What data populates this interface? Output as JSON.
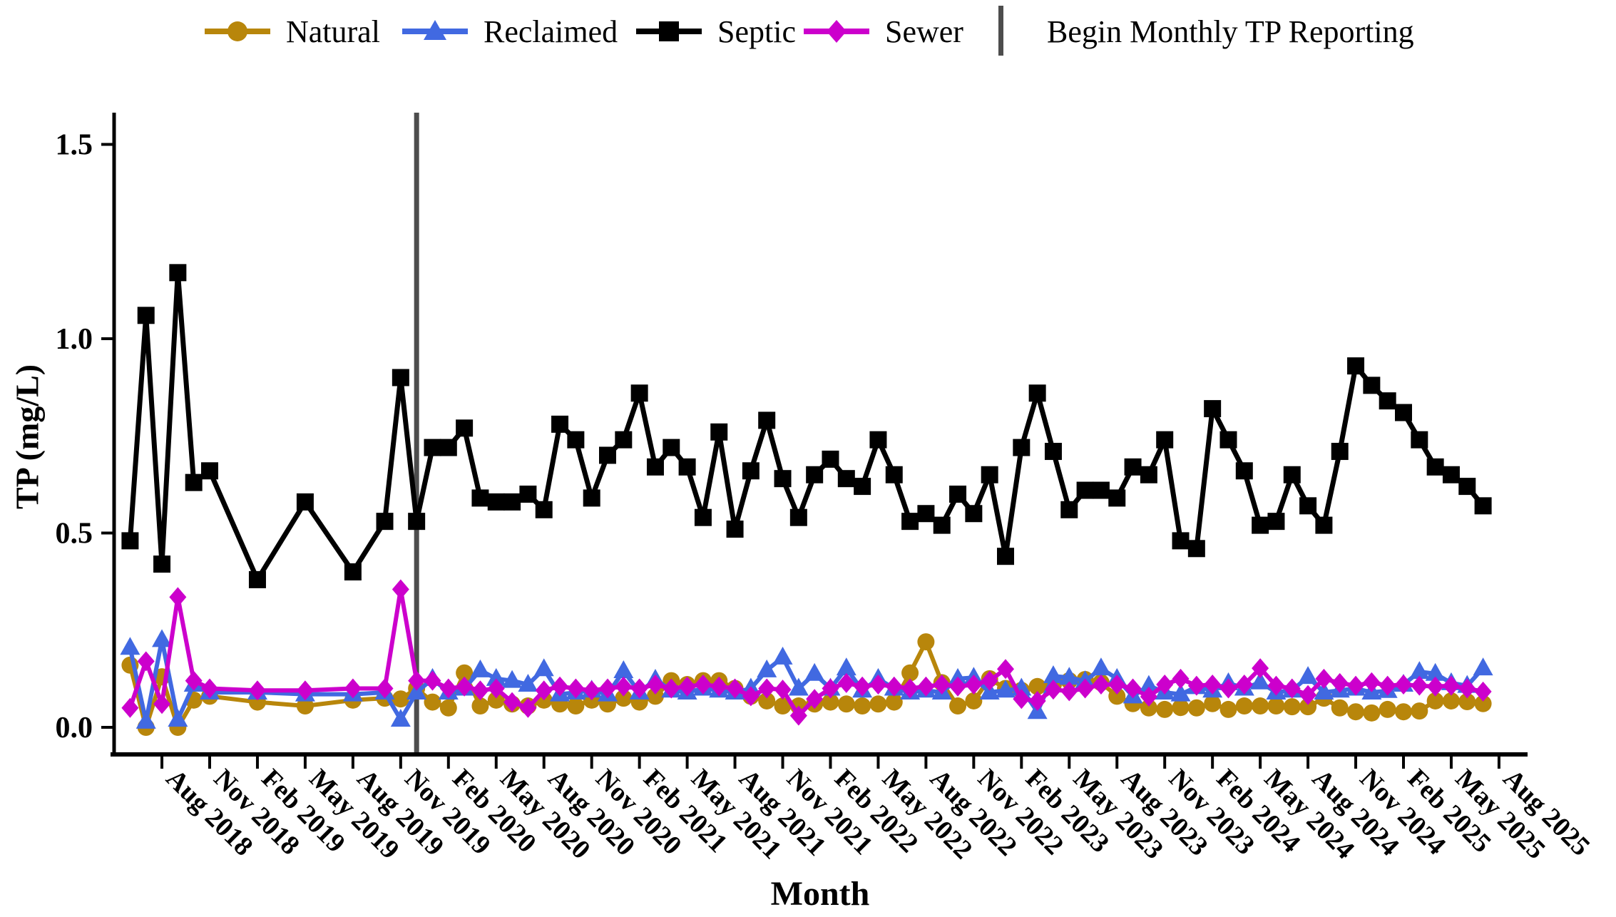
{
  "legend": {
    "items": [
      {
        "label": "Natural",
        "color": "#B8860B",
        "marker": "circle"
      },
      {
        "label": "Reclaimed",
        "color": "#4169E1",
        "marker": "triangle"
      },
      {
        "label": "Septic",
        "color": "#000000",
        "marker": "square"
      },
      {
        "label": "Sewer",
        "color": "#CC00CC",
        "marker": "diamond"
      }
    ],
    "separator_label": "Begin Monthly TP Reporting",
    "separator_color": "#4d4d4d"
  },
  "chart_data": {
    "type": "line",
    "title": "",
    "xlabel": "Month",
    "ylabel": "TP (mg/L)",
    "ylim": [
      0,
      1.58
    ],
    "yticks": [
      0.0,
      0.5,
      1.0,
      1.5
    ],
    "grid": "off",
    "legend_position": "top",
    "xtick_labels": [
      "Aug 2018",
      "Nov 2018",
      "Feb 2019",
      "May 2019",
      "Aug 2019",
      "Nov 2019",
      "Feb 2020",
      "May 2020",
      "Aug 2020",
      "Nov 2020",
      "Feb 2021",
      "May 2021",
      "Aug 2021",
      "Nov 2021",
      "Feb 2022",
      "May 2022",
      "Aug 2022",
      "Nov 2022",
      "Feb 2023",
      "May 2023",
      "Aug 2023",
      "Nov 2023",
      "Feb 2024",
      "May 2024",
      "Aug 2024",
      "Nov 2024",
      "Feb 2025",
      "May 2025",
      "Aug 2025"
    ],
    "xtick_months": [
      2,
      5,
      8,
      11,
      14,
      17,
      20,
      23,
      26,
      29,
      32,
      35,
      38,
      41,
      44,
      47,
      50,
      53,
      56,
      59,
      62,
      65,
      68,
      71,
      74,
      77,
      80,
      83,
      86
    ],
    "x_month_index_base": "0 = Jun 2018",
    "x_months": [
      0,
      1,
      2,
      3,
      4,
      5,
      8,
      11,
      14,
      16,
      17,
      18,
      19,
      20,
      21,
      22,
      23,
      24,
      25,
      26,
      27,
      28,
      29,
      30,
      31,
      32,
      33,
      34,
      35,
      36,
      37,
      38,
      39,
      40,
      41,
      42,
      43,
      44,
      45,
      46,
      47,
      48,
      49,
      50,
      51,
      52,
      53,
      54,
      55,
      56,
      57,
      58,
      59,
      60,
      61,
      62,
      63,
      64,
      65,
      66,
      67,
      68,
      69,
      70,
      71,
      72,
      73,
      74,
      75,
      76,
      77,
      78,
      79,
      80,
      81,
      82,
      83,
      84,
      85
    ],
    "vline": {
      "at_month_index": 18,
      "at_month": "Dec 2019",
      "label": "Begin Monthly TP Reporting",
      "color": "#4d4d4d"
    },
    "series": [
      {
        "name": "Natural",
        "color": "#B8860B",
        "marker": "circle",
        "values": [
          0.16,
          0.0,
          0.13,
          0.0,
          0.07,
          0.08,
          0.065,
          0.055,
          0.07,
          0.075,
          0.073,
          0.1,
          0.065,
          0.05,
          0.14,
          0.055,
          0.07,
          0.06,
          0.055,
          0.07,
          0.06,
          0.055,
          0.07,
          0.06,
          0.075,
          0.065,
          0.08,
          0.12,
          0.11,
          0.12,
          0.12,
          0.1,
          0.08,
          0.068,
          0.055,
          0.055,
          0.06,
          0.065,
          0.06,
          0.055,
          0.06,
          0.065,
          0.14,
          0.22,
          0.115,
          0.055,
          0.068,
          0.125,
          0.1,
          0.095,
          0.105,
          0.11,
          0.12,
          0.123,
          0.115,
          0.08,
          0.061,
          0.05,
          0.046,
          0.051,
          0.05,
          0.061,
          0.046,
          0.055,
          0.055,
          0.055,
          0.053,
          0.053,
          0.075,
          0.05,
          0.04,
          0.037,
          0.046,
          0.04,
          0.042,
          0.068,
          0.068,
          0.066,
          0.061
        ]
      },
      {
        "name": "Reclaimed",
        "color": "#4169E1",
        "marker": "triangle",
        "values": [
          0.205,
          0.015,
          0.225,
          0.02,
          0.11,
          0.09,
          0.09,
          0.085,
          0.085,
          0.09,
          0.02,
          0.09,
          0.125,
          0.09,
          0.1,
          0.147,
          0.125,
          0.12,
          0.11,
          0.15,
          0.085,
          0.09,
          0.095,
          0.085,
          0.145,
          0.09,
          0.123,
          0.095,
          0.09,
          0.1,
          0.095,
          0.09,
          0.1,
          0.147,
          0.18,
          0.1,
          0.138,
          0.1,
          0.152,
          0.095,
          0.125,
          0.1,
          0.09,
          0.095,
          0.09,
          0.125,
          0.128,
          0.09,
          0.095,
          0.1,
          0.04,
          0.132,
          0.128,
          0.119,
          0.152,
          0.125,
          0.08,
          0.107,
          0.09,
          0.085,
          0.104,
          0.095,
          0.114,
          0.1,
          0.116,
          0.09,
          0.095,
          0.13,
          0.09,
          0.095,
          0.1,
          0.09,
          0.094,
          0.11,
          0.143,
          0.138,
          0.114,
          0.107,
          0.152
        ]
      },
      {
        "name": "Septic",
        "color": "#000000",
        "marker": "square",
        "values": [
          0.48,
          1.06,
          0.42,
          1.17,
          0.63,
          0.66,
          0.38,
          0.58,
          0.4,
          0.53,
          0.9,
          0.53,
          0.72,
          0.72,
          0.77,
          0.59,
          0.58,
          0.58,
          0.6,
          0.56,
          0.78,
          0.74,
          0.59,
          0.7,
          0.74,
          0.86,
          0.67,
          0.72,
          0.67,
          0.54,
          0.76,
          0.51,
          0.66,
          0.79,
          0.64,
          0.54,
          0.65,
          0.69,
          0.64,
          0.62,
          0.74,
          0.65,
          0.53,
          0.55,
          0.52,
          0.6,
          0.55,
          0.65,
          0.44,
          0.72,
          0.86,
          0.71,
          0.56,
          0.61,
          0.61,
          0.59,
          0.67,
          0.65,
          0.74,
          0.48,
          0.46,
          0.82,
          0.74,
          0.66,
          0.52,
          0.53,
          0.65,
          0.57,
          0.52,
          0.71,
          0.93,
          0.88,
          0.84,
          0.81,
          0.74,
          0.67,
          0.65,
          0.62,
          0.57
        ]
      },
      {
        "name": "Sewer",
        "color": "#CC00CC",
        "marker": "diamond",
        "values": [
          0.05,
          0.17,
          0.06,
          0.335,
          0.12,
          0.1,
          0.095,
          0.095,
          0.1,
          0.1,
          0.355,
          0.12,
          0.12,
          0.1,
          0.105,
          0.095,
          0.1,
          0.065,
          0.05,
          0.095,
          0.105,
          0.1,
          0.095,
          0.1,
          0.105,
          0.1,
          0.11,
          0.1,
          0.105,
          0.11,
          0.105,
          0.1,
          0.08,
          0.1,
          0.097,
          0.03,
          0.073,
          0.1,
          0.114,
          0.105,
          0.11,
          0.105,
          0.1,
          0.105,
          0.11,
          0.105,
          0.11,
          0.12,
          0.15,
          0.073,
          0.068,
          0.097,
          0.093,
          0.1,
          0.11,
          0.11,
          0.1,
          0.079,
          0.11,
          0.125,
          0.107,
          0.11,
          0.1,
          0.11,
          0.152,
          0.107,
          0.1,
          0.083,
          0.125,
          0.114,
          0.107,
          0.116,
          0.107,
          0.11,
          0.107,
          0.105,
          0.107,
          0.1,
          0.092
        ]
      }
    ]
  }
}
